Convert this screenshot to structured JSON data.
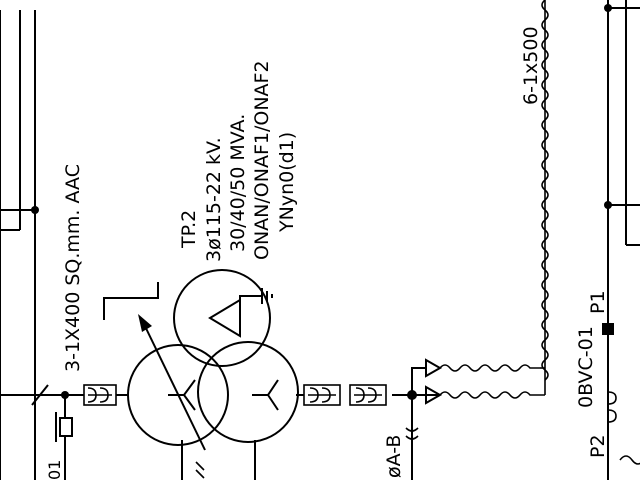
{
  "conductor_label": "3-1X400 SQ.mm. AAC",
  "cable_label": "6-1x500",
  "transformer": {
    "name": "TP.2",
    "voltage": "3ø115-22 kV.",
    "rating": "30/40/50 MVA.",
    "cooling": "ONAN/ONAF1/ONAF2",
    "vector_group": "YNyn0(d1)"
  },
  "phase_label": "øA-B",
  "breaker_label": "0BVC-01",
  "p1_label": "P1",
  "p2_label": "P2",
  "edge_label": "01"
}
